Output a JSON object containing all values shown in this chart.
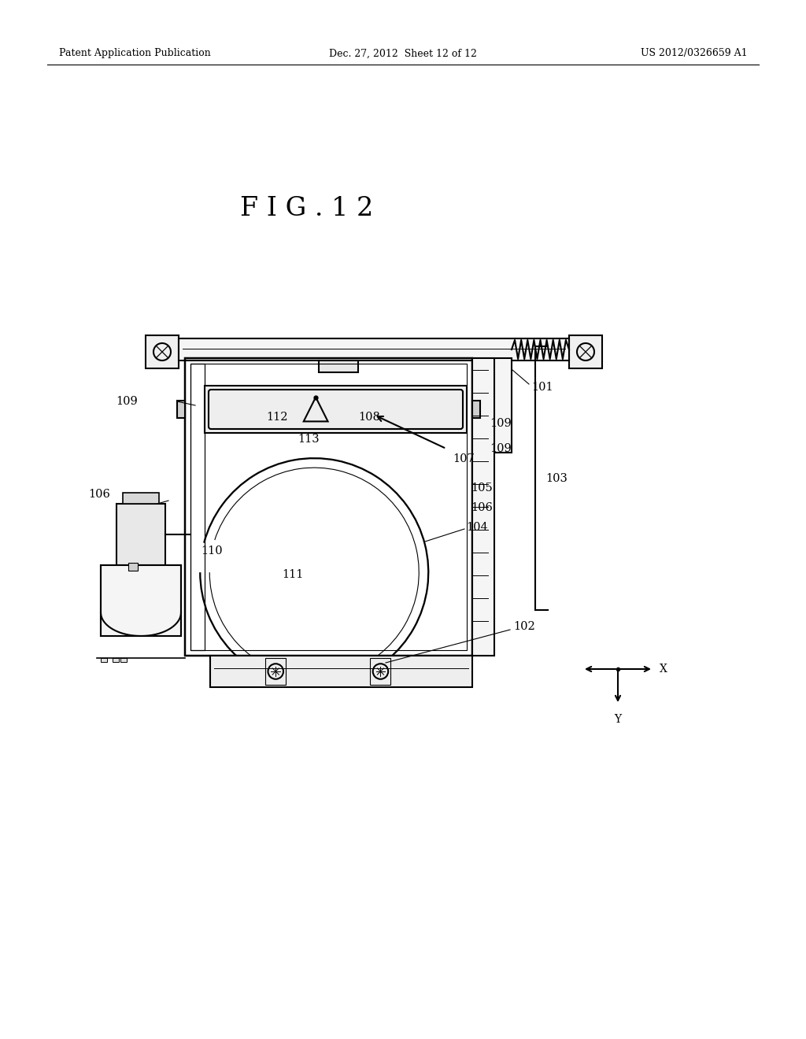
{
  "background_color": "#ffffff",
  "header_left": "Patent Application Publication",
  "header_mid": "Dec. 27, 2012  Sheet 12 of 12",
  "header_right": "US 2012/0326659 A1",
  "figure_title": "F I G . 1 2",
  "line_color": "#000000",
  "line_width": 1.5,
  "text_color": "#000000",
  "label_fs": 10.5
}
